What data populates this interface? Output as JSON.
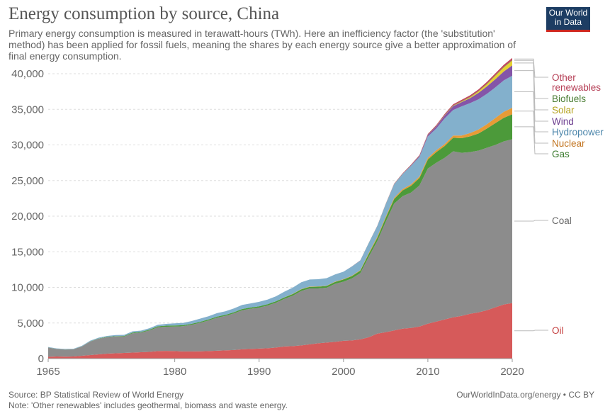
{
  "header": {
    "title": "Energy consumption by source, China",
    "subtitle": "Primary energy consumption is measured in terawatt-hours (TWh). Here an inefficiency factor (the 'substitution' method) has been applied for fossil fuels, meaning the shares by each energy source give a better approximation of final energy consumption."
  },
  "logo": {
    "line1": "Our World",
    "line2": "in Data"
  },
  "footer": {
    "source": "Source: BP Statistical Review of World Energy",
    "note": "Note: 'Other renewables' includes geothermal, biomass and waste energy.",
    "credit": "OurWorldInData.org/energy • CC BY"
  },
  "chart_data": {
    "type": "area",
    "stacked": true,
    "x_ticks": [
      1965,
      1980,
      1990,
      2000,
      2010,
      2020
    ],
    "y_ticks": [
      0,
      5000,
      10000,
      15000,
      20000,
      25000,
      30000,
      35000,
      40000
    ],
    "y_tick_labels": [
      "0",
      "5,000",
      "10,000",
      "15,000",
      "20,000",
      "25,000",
      "30,000",
      "35,000",
      "40,000"
    ],
    "ylim": [
      0,
      40000
    ],
    "xlim": [
      1965,
      2020
    ],
    "grid": "horizontal dashed",
    "x": [
      1965,
      1966,
      1967,
      1968,
      1969,
      1970,
      1971,
      1972,
      1973,
      1974,
      1975,
      1976,
      1977,
      1978,
      1979,
      1980,
      1981,
      1982,
      1983,
      1984,
      1985,
      1986,
      1987,
      1988,
      1989,
      1990,
      1991,
      1992,
      1993,
      1994,
      1995,
      1996,
      1997,
      1998,
      1999,
      2000,
      2001,
      2002,
      2003,
      2004,
      2005,
      2006,
      2007,
      2008,
      2009,
      2010,
      2011,
      2012,
      2013,
      2014,
      2015,
      2016,
      2017,
      2018,
      2019,
      2020
    ],
    "series": [
      {
        "name": "Oil",
        "color": "#d65a5a",
        "label_color": "#c43d3d",
        "values": [
          250,
          300,
          270,
          300,
          400,
          500,
          600,
          700,
          750,
          800,
          850,
          900,
          950,
          1050,
          1080,
          1050,
          1000,
          1000,
          1020,
          1050,
          1100,
          1150,
          1200,
          1300,
          1350,
          1400,
          1450,
          1550,
          1700,
          1750,
          1850,
          2000,
          2150,
          2250,
          2350,
          2500,
          2550,
          2700,
          3000,
          3500,
          3700,
          3950,
          4200,
          4300,
          4500,
          4900,
          5200,
          5500,
          5800,
          6000,
          6300,
          6500,
          6800,
          7200,
          7600,
          7800
        ]
      },
      {
        "name": "Coal",
        "color": "#8c8c8c",
        "label_color": "#666666",
        "values": [
          1300,
          1050,
          1000,
          1000,
          1300,
          1900,
          2200,
          2300,
          2350,
          2300,
          2700,
          2750,
          3000,
          3350,
          3400,
          3450,
          3550,
          3750,
          4000,
          4300,
          4650,
          4850,
          5150,
          5500,
          5650,
          5750,
          6000,
          6300,
          6700,
          7100,
          7650,
          7850,
          7700,
          7700,
          8150,
          8300,
          8700,
          9300,
          11300,
          13000,
          15500,
          17800,
          18600,
          19000,
          19800,
          21800,
          22300,
          22700,
          23300,
          22900,
          22700,
          22700,
          22800,
          22800,
          22900,
          23000
        ]
      },
      {
        "name": "Gas",
        "color": "#4c9a3a",
        "label_color": "#3a7a2d",
        "values": [
          10,
          15,
          15,
          15,
          20,
          30,
          40,
          50,
          60,
          80,
          100,
          110,
          120,
          140,
          150,
          150,
          140,
          140,
          140,
          150,
          150,
          150,
          160,
          170,
          170,
          180,
          190,
          200,
          200,
          210,
          220,
          230,
          250,
          250,
          260,
          300,
          330,
          350,
          400,
          450,
          550,
          650,
          800,
          950,
          1050,
          1250,
          1500,
          1650,
          1900,
          2050,
          2200,
          2400,
          2700,
          3050,
          3300,
          3500
        ]
      },
      {
        "name": "Nuclear",
        "color": "#e79b36",
        "label_color": "#c1731e",
        "values": [
          0,
          0,
          0,
          0,
          0,
          0,
          0,
          0,
          0,
          0,
          0,
          0,
          0,
          0,
          0,
          0,
          0,
          0,
          0,
          0,
          0,
          0,
          0,
          0,
          0,
          0,
          0,
          0,
          5,
          40,
          40,
          40,
          40,
          40,
          50,
          50,
          60,
          80,
          130,
          150,
          160,
          170,
          190,
          200,
          210,
          230,
          250,
          280,
          310,
          360,
          470,
          560,
          620,
          730,
          860,
          910
        ]
      },
      {
        "name": "Hydropower",
        "color": "#83b0cc",
        "label_color": "#4c86ab",
        "values": [
          70,
          70,
          70,
          70,
          80,
          100,
          110,
          130,
          150,
          150,
          180,
          170,
          200,
          220,
          250,
          300,
          320,
          380,
          450,
          450,
          480,
          500,
          520,
          560,
          580,
          640,
          650,
          700,
          800,
          880,
          960,
          980,
          1000,
          1050,
          1000,
          1050,
          1300,
          1350,
          1400,
          1500,
          1750,
          1900,
          2100,
          2600,
          2750,
          3000,
          3050,
          3600,
          3600,
          4100,
          4200,
          4250,
          4250,
          4300,
          4400,
          4500
        ]
      },
      {
        "name": "Wind",
        "color": "#8455a8",
        "label_color": "#6b3d8f",
        "values": [
          0,
          0,
          0,
          0,
          0,
          0,
          0,
          0,
          0,
          0,
          0,
          0,
          0,
          0,
          0,
          0,
          0,
          0,
          0,
          0,
          0,
          0,
          0,
          0,
          0,
          0,
          0,
          0,
          0,
          0,
          0,
          0,
          0,
          0,
          0,
          0,
          0,
          0,
          0,
          5,
          10,
          20,
          30,
          60,
          120,
          200,
          300,
          400,
          540,
          600,
          700,
          900,
          1050,
          1150,
          1250,
          1450
        ]
      },
      {
        "name": "Solar",
        "color": "#e6d131",
        "label_color": "#b3a11a",
        "values": [
          0,
          0,
          0,
          0,
          0,
          0,
          0,
          0,
          0,
          0,
          0,
          0,
          0,
          0,
          0,
          0,
          0,
          0,
          0,
          0,
          0,
          0,
          0,
          0,
          0,
          0,
          0,
          0,
          0,
          0,
          0,
          0,
          0,
          0,
          0,
          0,
          0,
          0,
          0,
          0,
          0,
          0,
          0,
          0,
          0,
          0,
          5,
          15,
          30,
          70,
          120,
          200,
          320,
          480,
          580,
          680
        ]
      },
      {
        "name": "Biofuels",
        "color": "#5f9844",
        "label_color": "#4a7d34",
        "values": [
          0,
          0,
          0,
          0,
          0,
          0,
          0,
          0,
          0,
          0,
          0,
          0,
          0,
          0,
          0,
          0,
          0,
          0,
          0,
          0,
          0,
          0,
          0,
          0,
          0,
          0,
          0,
          0,
          0,
          0,
          0,
          0,
          0,
          0,
          0,
          0,
          0,
          5,
          10,
          15,
          20,
          25,
          30,
          35,
          35,
          40,
          45,
          45,
          50,
          50,
          55,
          55,
          55,
          60,
          60,
          60
        ]
      },
      {
        "name": "Other renewables",
        "color": "#c14a5e",
        "label_color": "#b53d54",
        "values": [
          0,
          0,
          0,
          0,
          0,
          0,
          0,
          0,
          0,
          0,
          0,
          0,
          0,
          0,
          0,
          0,
          0,
          0,
          0,
          0,
          0,
          0,
          0,
          0,
          0,
          0,
          0,
          0,
          0,
          0,
          0,
          0,
          0,
          0,
          0,
          0,
          10,
          15,
          20,
          30,
          40,
          50,
          60,
          80,
          100,
          120,
          140,
          160,
          180,
          200,
          220,
          240,
          260,
          280,
          300,
          320
        ]
      }
    ],
    "legend_order": [
      "Other renewables",
      "Biofuels",
      "Solar",
      "Wind",
      "Hydropower",
      "Nuclear",
      "Gas",
      "Coal",
      "Oil"
    ],
    "legend_text": {
      "Other renewables": [
        "Other",
        "renewables"
      ],
      "Biofuels": [
        "Biofuels"
      ],
      "Solar": [
        "Solar"
      ],
      "Wind": [
        "Wind"
      ],
      "Hydropower": [
        "Hydropower"
      ],
      "Nuclear": [
        "Nuclear"
      ],
      "Gas": [
        "Gas"
      ],
      "Coal": [
        "Coal"
      ],
      "Oil": [
        "Oil"
      ]
    },
    "legend_placement": "right"
  }
}
